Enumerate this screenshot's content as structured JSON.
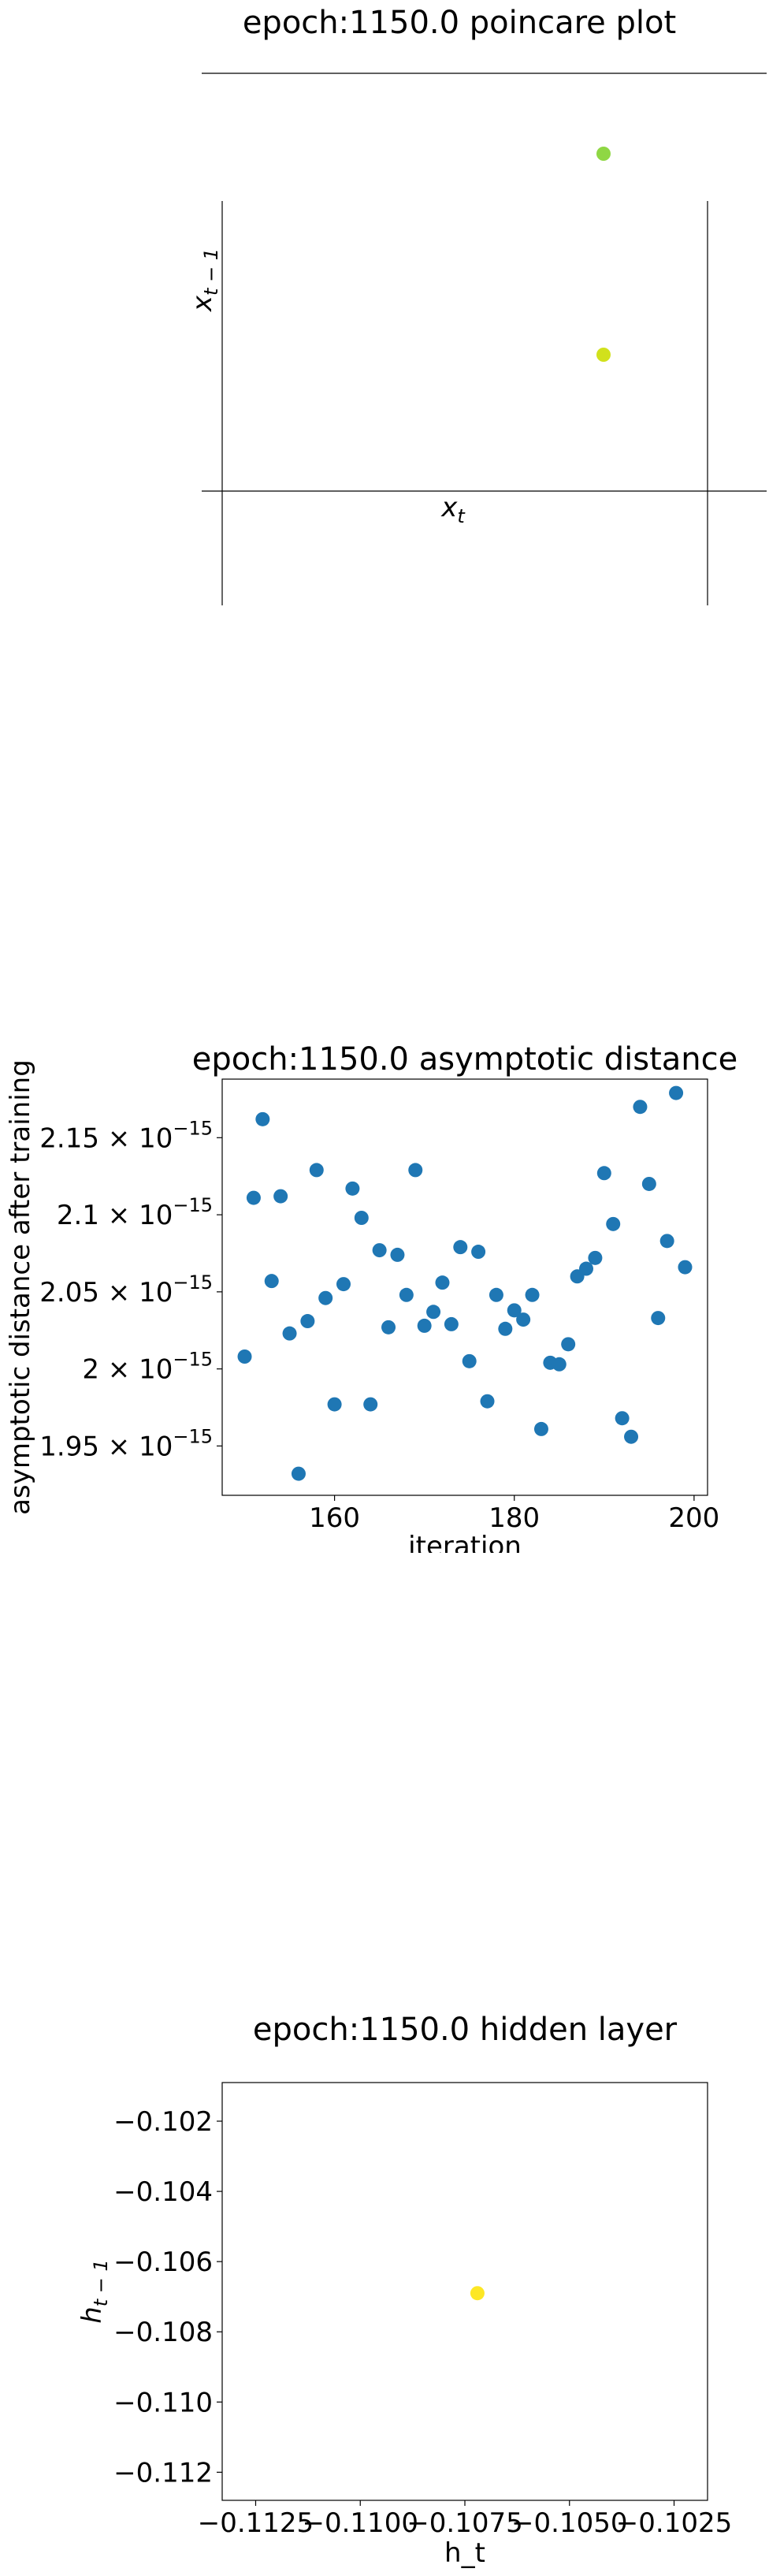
{
  "poincare": {
    "title": "epoch:1150.0 poincare plot",
    "xlabel_base": "x",
    "xlabel_sub": "t",
    "ylabel_base": "x",
    "ylabel_sub": "t − 1"
  },
  "asymptotic": {
    "title": "epoch:1150.0 asymptotic distance",
    "xlabel": "iteration",
    "ylabel": "asymptotic distance after training",
    "ytick_mult": "× 10",
    "ytick_exp": "−15"
  },
  "hidden": {
    "title": "epoch:1150.0 hidden layer",
    "xlabel": "h_t",
    "ylabel_base": "h",
    "ylabel_sub": "t − 1"
  },
  "chart_data": [
    {
      "type": "scatter",
      "title": "epoch:1150.0 poincare plot",
      "xlabel": "x_t",
      "ylabel": "x_{t-1}",
      "points": [
        {
          "label": "upper",
          "color": "#8fd744"
        },
        {
          "label": "lower",
          "color": "#d1e11c"
        }
      ],
      "axis_style": "centered spines, no ticks"
    },
    {
      "type": "scatter",
      "title": "epoch:1150.0 asymptotic distance",
      "xlabel": "iteration",
      "ylabel": "asymptotic distance after training",
      "xlim": [
        147.5,
        201.5
      ],
      "ylim": [
        1.918,
        2.188
      ],
      "y_scale_note": "values in units of 1e-15",
      "xticks": [
        160,
        180,
        200
      ],
      "yticks": [
        {
          "value": 1.95,
          "label": "1.95"
        },
        {
          "value": 2.0,
          "label": "2"
        },
        {
          "value": 2.05,
          "label": "2.05"
        },
        {
          "value": 2.1,
          "label": "2.1"
        },
        {
          "value": 2.15,
          "label": "2.15"
        }
      ],
      "color": "#1f77b4",
      "x": [
        150,
        151,
        152,
        153,
        154,
        155,
        156,
        157,
        158,
        159,
        160,
        161,
        162,
        163,
        164,
        165,
        166,
        167,
        168,
        169,
        170,
        171,
        172,
        173,
        174,
        175,
        176,
        177,
        178,
        179,
        180,
        181,
        182,
        183,
        184,
        185,
        186,
        187,
        188,
        189,
        190,
        191,
        192,
        193,
        194,
        195,
        196,
        197,
        198,
        199
      ],
      "y": [
        2.008,
        2.111,
        2.162,
        2.057,
        2.112,
        2.023,
        1.932,
        2.031,
        2.129,
        2.046,
        1.977,
        2.055,
        2.117,
        2.098,
        1.977,
        2.077,
        2.027,
        2.074,
        2.048,
        2.129,
        2.028,
        2.037,
        2.056,
        2.029,
        2.079,
        2.005,
        2.076,
        1.979,
        2.048,
        2.026,
        2.038,
        2.032,
        2.048,
        1.961,
        2.004,
        2.003,
        2.016,
        2.06,
        2.065,
        2.072,
        2.127,
        2.094,
        1.968,
        1.956,
        2.17,
        2.12,
        2.033,
        2.083,
        2.179,
        2.066
      ]
    },
    {
      "type": "scatter",
      "title": "epoch:1150.0 hidden layer",
      "xlabel": "h_t",
      "ylabel": "h_{t-1}",
      "xlim": [
        -0.1133,
        -0.1017
      ],
      "ylim": [
        -0.1128,
        -0.1009
      ],
      "xticks": [
        {
          "value": -0.1125,
          "label": "−0.1125"
        },
        {
          "value": -0.11,
          "label": "−0.1100"
        },
        {
          "value": -0.1075,
          "label": "−0.1075"
        },
        {
          "value": -0.105,
          "label": "−0.1050"
        },
        {
          "value": -0.1025,
          "label": "−0.1025"
        }
      ],
      "yticks": [
        {
          "value": -0.102,
          "label": "−0.102"
        },
        {
          "value": -0.104,
          "label": "−0.104"
        },
        {
          "value": -0.106,
          "label": "−0.106"
        },
        {
          "value": -0.108,
          "label": "−0.108"
        },
        {
          "value": -0.11,
          "label": "−0.110"
        },
        {
          "value": -0.112,
          "label": "−0.112"
        }
      ],
      "points": [
        {
          "x": -0.1072,
          "y": -0.1069,
          "color": "#fde725"
        }
      ]
    }
  ]
}
